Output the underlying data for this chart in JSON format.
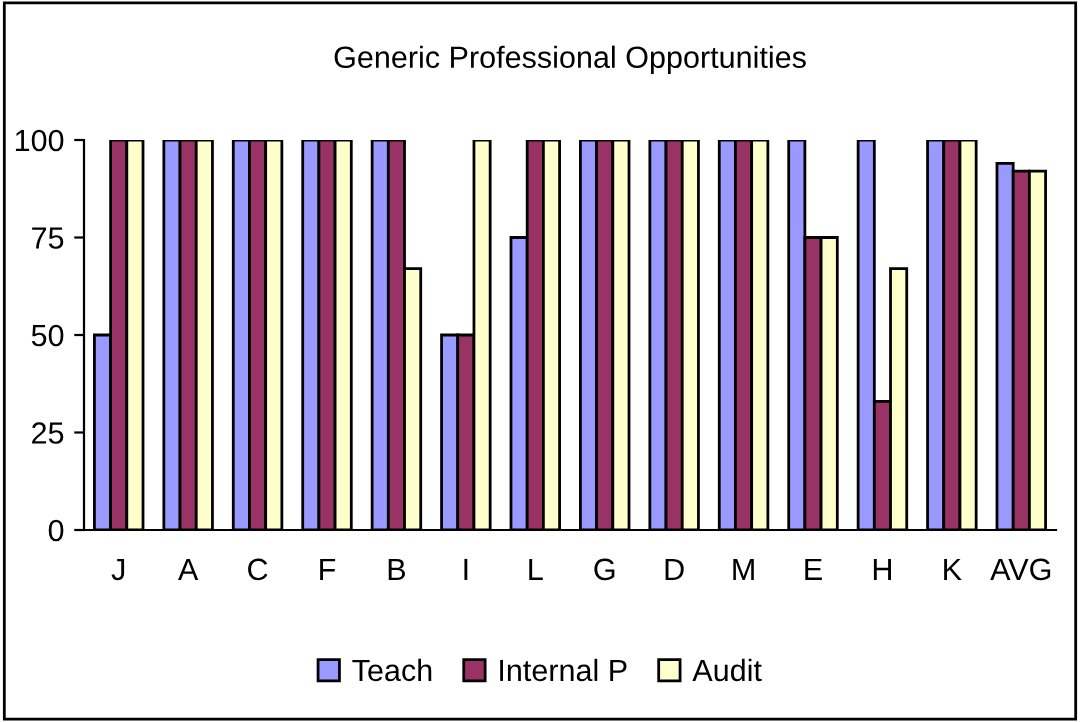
{
  "chart_data": {
    "type": "bar",
    "title": "Generic Professional Opportunities",
    "categories": [
      "J",
      "A",
      "C",
      "F",
      "B",
      "I",
      "L",
      "G",
      "D",
      "M",
      "E",
      "H",
      "K",
      "AVG"
    ],
    "series": [
      {
        "name": "Teach",
        "color": "#9999ff",
        "values": [
          50,
          100,
          100,
          100,
          100,
          50,
          75,
          100,
          100,
          100,
          100,
          100,
          100,
          94
        ]
      },
      {
        "name": "Internal P",
        "color": "#993366",
        "values": [
          100,
          100,
          100,
          100,
          100,
          50,
          100,
          100,
          100,
          100,
          75,
          33,
          100,
          92
        ]
      },
      {
        "name": "Audit",
        "color": "#ffffcc",
        "values": [
          100,
          100,
          100,
          100,
          67,
          100,
          100,
          100,
          100,
          100,
          75,
          67,
          100,
          92
        ]
      }
    ],
    "ylim": [
      0,
      100
    ],
    "yticks": [
      0,
      25,
      50,
      75,
      100
    ],
    "grid": false,
    "legend": "bottom"
  }
}
